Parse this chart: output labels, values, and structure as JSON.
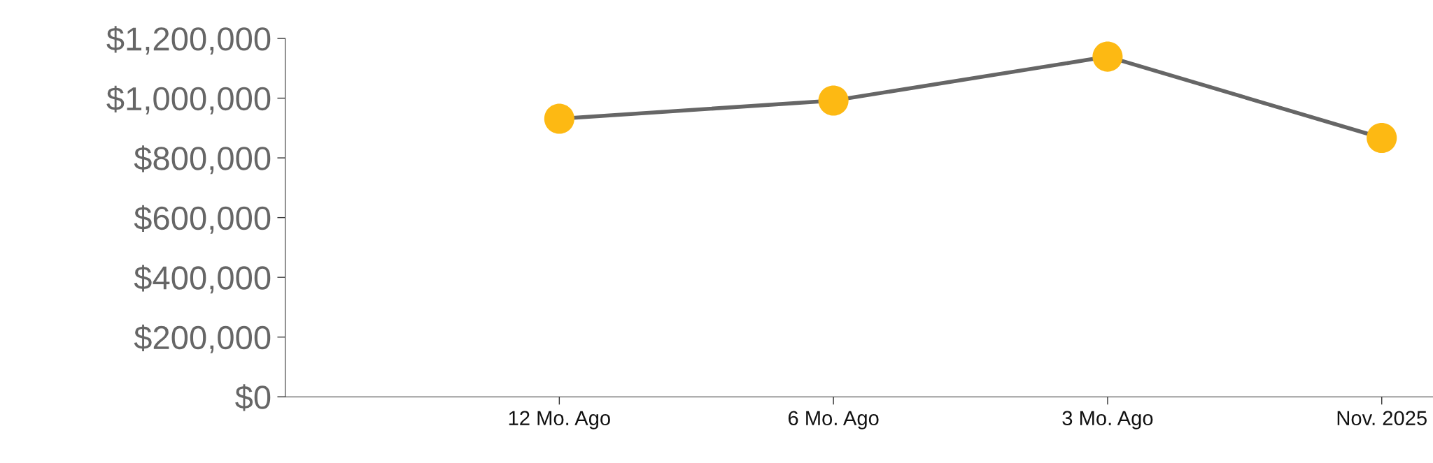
{
  "chart_data": {
    "type": "line",
    "categories": [
      null,
      "12 Mo. Ago",
      "6 Mo. Ago",
      "3 Mo. Ago",
      "Nov. 2025"
    ],
    "series": [
      {
        "color": "#666666",
        "colors": [
          "#fdb913",
          "#fdb913",
          "#fdb913",
          "#fdb913",
          "#fdb913"
        ],
        "values": [
          null,
          931000,
          992000,
          1139000,
          867000
        ]
      }
    ],
    "ylim": [
      0,
      1200000
    ],
    "yticks": [
      {
        "value": 0,
        "label": "$0"
      },
      {
        "value": 200000,
        "label": "$200,000"
      },
      {
        "value": 400000,
        "label": "$400,000"
      },
      {
        "value": 600000,
        "label": "$600,000"
      },
      {
        "value": 800000,
        "label": "$800,000"
      },
      {
        "value": 1000000,
        "label": "$1,000,000"
      },
      {
        "value": 1200000,
        "label": "$1,200,000"
      }
    ],
    "marker": "circle",
    "line_style": "solid",
    "grid": false,
    "legend": false
  }
}
